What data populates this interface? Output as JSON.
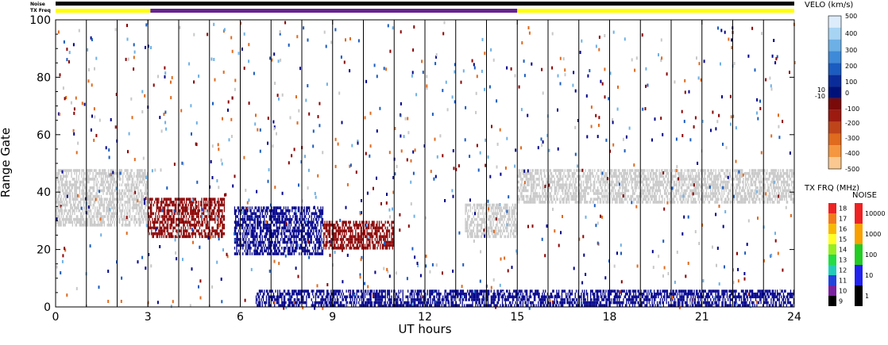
{
  "chart_data": {
    "type": "heatmap",
    "title": "",
    "xlabel": "UT hours",
    "ylabel": "Range Gate",
    "xlim": [
      0,
      24
    ],
    "ylim": [
      0,
      100
    ],
    "x_ticks": [
      "0",
      "3",
      "6",
      "9",
      "12",
      "15",
      "18",
      "21",
      "24"
    ],
    "y_ticks": [
      "0",
      "20",
      "40",
      "60",
      "80",
      "100"
    ],
    "header_strips": {
      "noise_label": "Noise",
      "txfreq_label": "TX Freq",
      "txfreq_segments": [
        {
          "start": 0,
          "end": 3.08,
          "color": "#ffff00"
        },
        {
          "start": 3.08,
          "end": 15,
          "color": "#662290"
        },
        {
          "start": 15,
          "end": 24,
          "color": "#ffff00"
        }
      ]
    },
    "scan_boundaries_ut": [
      1,
      2,
      3,
      4,
      5,
      6,
      7,
      8,
      9,
      10,
      11,
      12,
      13,
      14,
      15,
      16,
      17,
      18,
      19,
      20,
      21,
      22,
      23
    ],
    "scatter_regions": [
      {
        "name": "ground_scatter_low",
        "color": "#c8c8c8",
        "t0": 0,
        "t1": 3.0,
        "g0": 28,
        "g1": 48
      },
      {
        "name": "neg_vel_band_03_05",
        "color": "#8b0000",
        "t0": 3.0,
        "t1": 5.5,
        "g0": 24,
        "g1": 38
      },
      {
        "name": "pos_vel_band_06_09",
        "color": "#00008b",
        "t0": 5.8,
        "t1": 8.7,
        "g0": 18,
        "g1": 35
      },
      {
        "name": "neg_vel_band_09_11",
        "color": "#8b0000",
        "t0": 8.7,
        "t1": 11.0,
        "g0": 20,
        "g1": 30
      },
      {
        "name": "ground_scatter_12_15",
        "color": "#c8c8c8",
        "t0": 13.3,
        "t1": 15.0,
        "g0": 24,
        "g1": 36
      },
      {
        "name": "ground_scatter_15_24",
        "color": "#c8c8c8",
        "t0": 15.0,
        "t1": 24.0,
        "g0": 36,
        "g1": 48
      },
      {
        "name": "near_range_scatter",
        "color": "#00008b",
        "t0": 6.5,
        "t1": 24.0,
        "g0": 0,
        "g1": 6
      }
    ],
    "velocity_scale": {
      "title": "VELO (km/s)",
      "unit": "km/s",
      "labels": [
        "500",
        "400",
        "300",
        "200",
        "100",
        "0",
        "10",
        "-10",
        "-100",
        "-200",
        "-300",
        "-400",
        "-500"
      ],
      "colors": [
        "#dcecfa",
        "#a8d4f4",
        "#6db0e6",
        "#3e8ad8",
        "#1a5cc0",
        "#0a2c9a",
        "#00127a",
        "#7a0a0a",
        "#9c1a10",
        "#c0441a",
        "#e06a1e",
        "#f59640",
        "#fac890"
      ]
    },
    "txfreq_scale": {
      "title": "TX FRQ (MHz)",
      "labels": [
        "18",
        "17",
        "16",
        "15",
        "14",
        "13",
        "12",
        "11",
        "10",
        "9"
      ],
      "colors": [
        "#ee2222",
        "#f47a18",
        "#f8b800",
        "#ffff22",
        "#96ee22",
        "#22dd44",
        "#22ccbb",
        "#2244dd",
        "#7a22a0",
        "#000000"
      ]
    },
    "noise_scale": {
      "title": "NOISE",
      "labels": [
        "10000",
        "1000",
        "100",
        "10",
        "1"
      ],
      "colors": [
        "#ee2222",
        "#f8a000",
        "#22cc22",
        "#2222ee",
        "#000000"
      ]
    }
  }
}
